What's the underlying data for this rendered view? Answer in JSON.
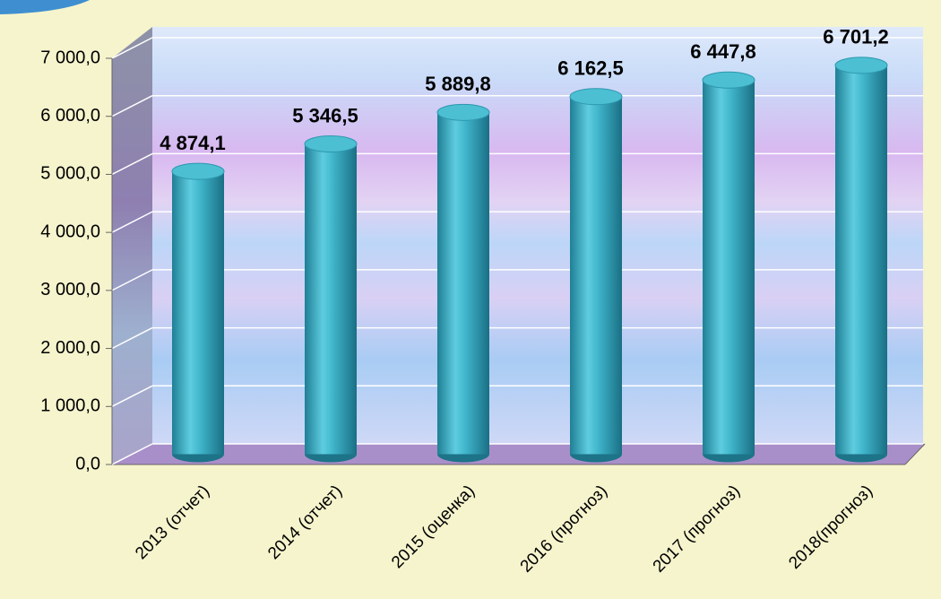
{
  "chart_data": {
    "type": "bar",
    "categories": [
      "2013 (отчет)",
      "2014 (отчет)",
      "2015 (оценка)",
      "2016 (прогноз)",
      "2017 (прогноз)",
      "2018(прогноз)"
    ],
    "values": [
      4874.1,
      5346.5,
      5889.8,
      6162.5,
      6447.8,
      6701.2
    ],
    "value_labels": [
      "4 874,1",
      "5 346,5",
      "5 889,8",
      "6 162,5",
      "6 447,8",
      "6 701,2"
    ],
    "color": "#3aaec4",
    "ylim": [
      0,
      7000
    ],
    "yticks": [
      {
        "value": 0,
        "label": "0,0"
      },
      {
        "value": 1000,
        "label": "1 000,0"
      },
      {
        "value": 2000,
        "label": "2 000,0"
      },
      {
        "value": 3000,
        "label": "3 000,0"
      },
      {
        "value": 4000,
        "label": "4 000,0"
      },
      {
        "value": 5000,
        "label": "5 000,0"
      },
      {
        "value": 6000,
        "label": "6 000,0"
      },
      {
        "value": 7000,
        "label": "7 000,0"
      }
    ],
    "grid": true
  }
}
